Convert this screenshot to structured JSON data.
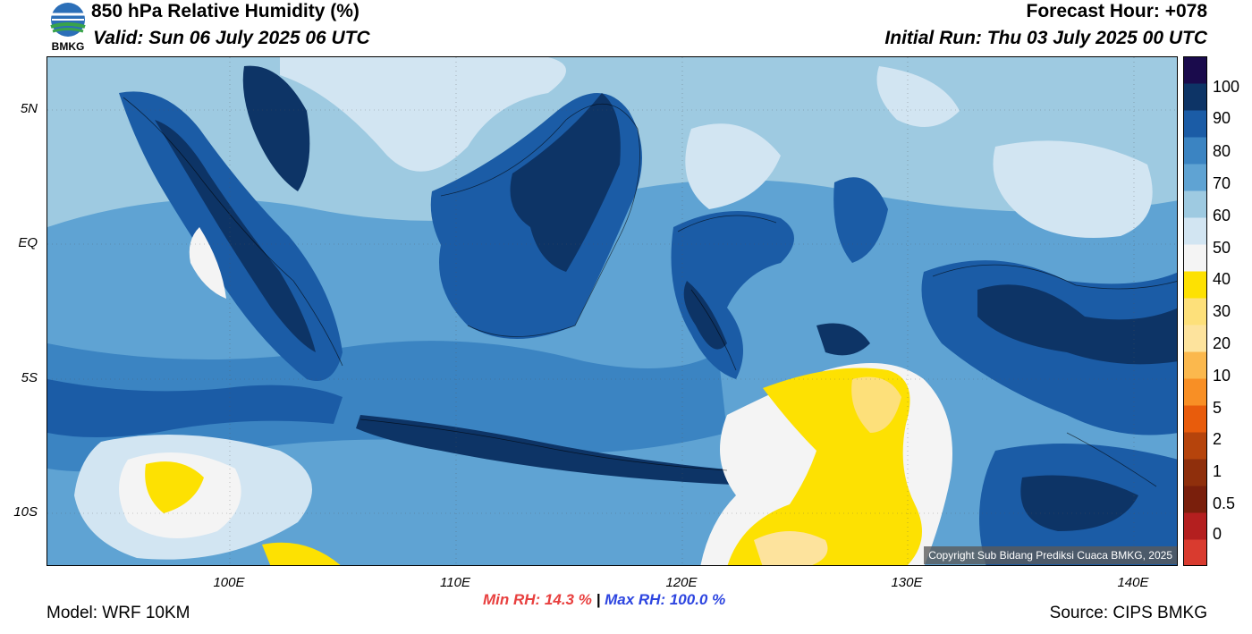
{
  "header": {
    "title": "850 hPa Relative Humidity (%)",
    "valid": "Valid: Sun 06 July 2025 06 UTC",
    "forecast_hour": "Forecast Hour: +078",
    "initial_run": "Initial Run: Thu 03 July 2025 00 UTC",
    "logo_text": "BMKG"
  },
  "axes": {
    "lat_labels": [
      "5N",
      "EQ",
      "5S",
      "10S"
    ],
    "lon_labels": [
      "100E",
      "110E",
      "120E",
      "130E",
      "140E"
    ]
  },
  "colorbar": {
    "labels": [
      "100",
      "90",
      "80",
      "70",
      "60",
      "50",
      "40",
      "30",
      "20",
      "10",
      "5",
      "2",
      "1",
      "0.5",
      "0"
    ],
    "colors": [
      "#d93b2f",
      "#b41f1f",
      "#7a1f0c",
      "#8f2f0c",
      "#b6440c",
      "#e85c0c",
      "#f88f25",
      "#fbb84d",
      "#fde39d",
      "#fde07a",
      "#fde102",
      "#f4f4f4",
      "#d2e5f2",
      "#9ecae1",
      "#5fa3d3",
      "#3b84c2",
      "#1b5ca6",
      "#0d3466",
      "#1a0b4c"
    ]
  },
  "stats": {
    "min_rh": "Min RH:  14.3 %",
    "separator": "|",
    "max_rh": "Max RH: 100.0 %"
  },
  "footer": {
    "model": "Model: WRF 10KM",
    "source": "Source: CIPS BMKG",
    "copyright": "Copyright Sub Bidang Prediksi Cuaca BMKG, 2025"
  }
}
